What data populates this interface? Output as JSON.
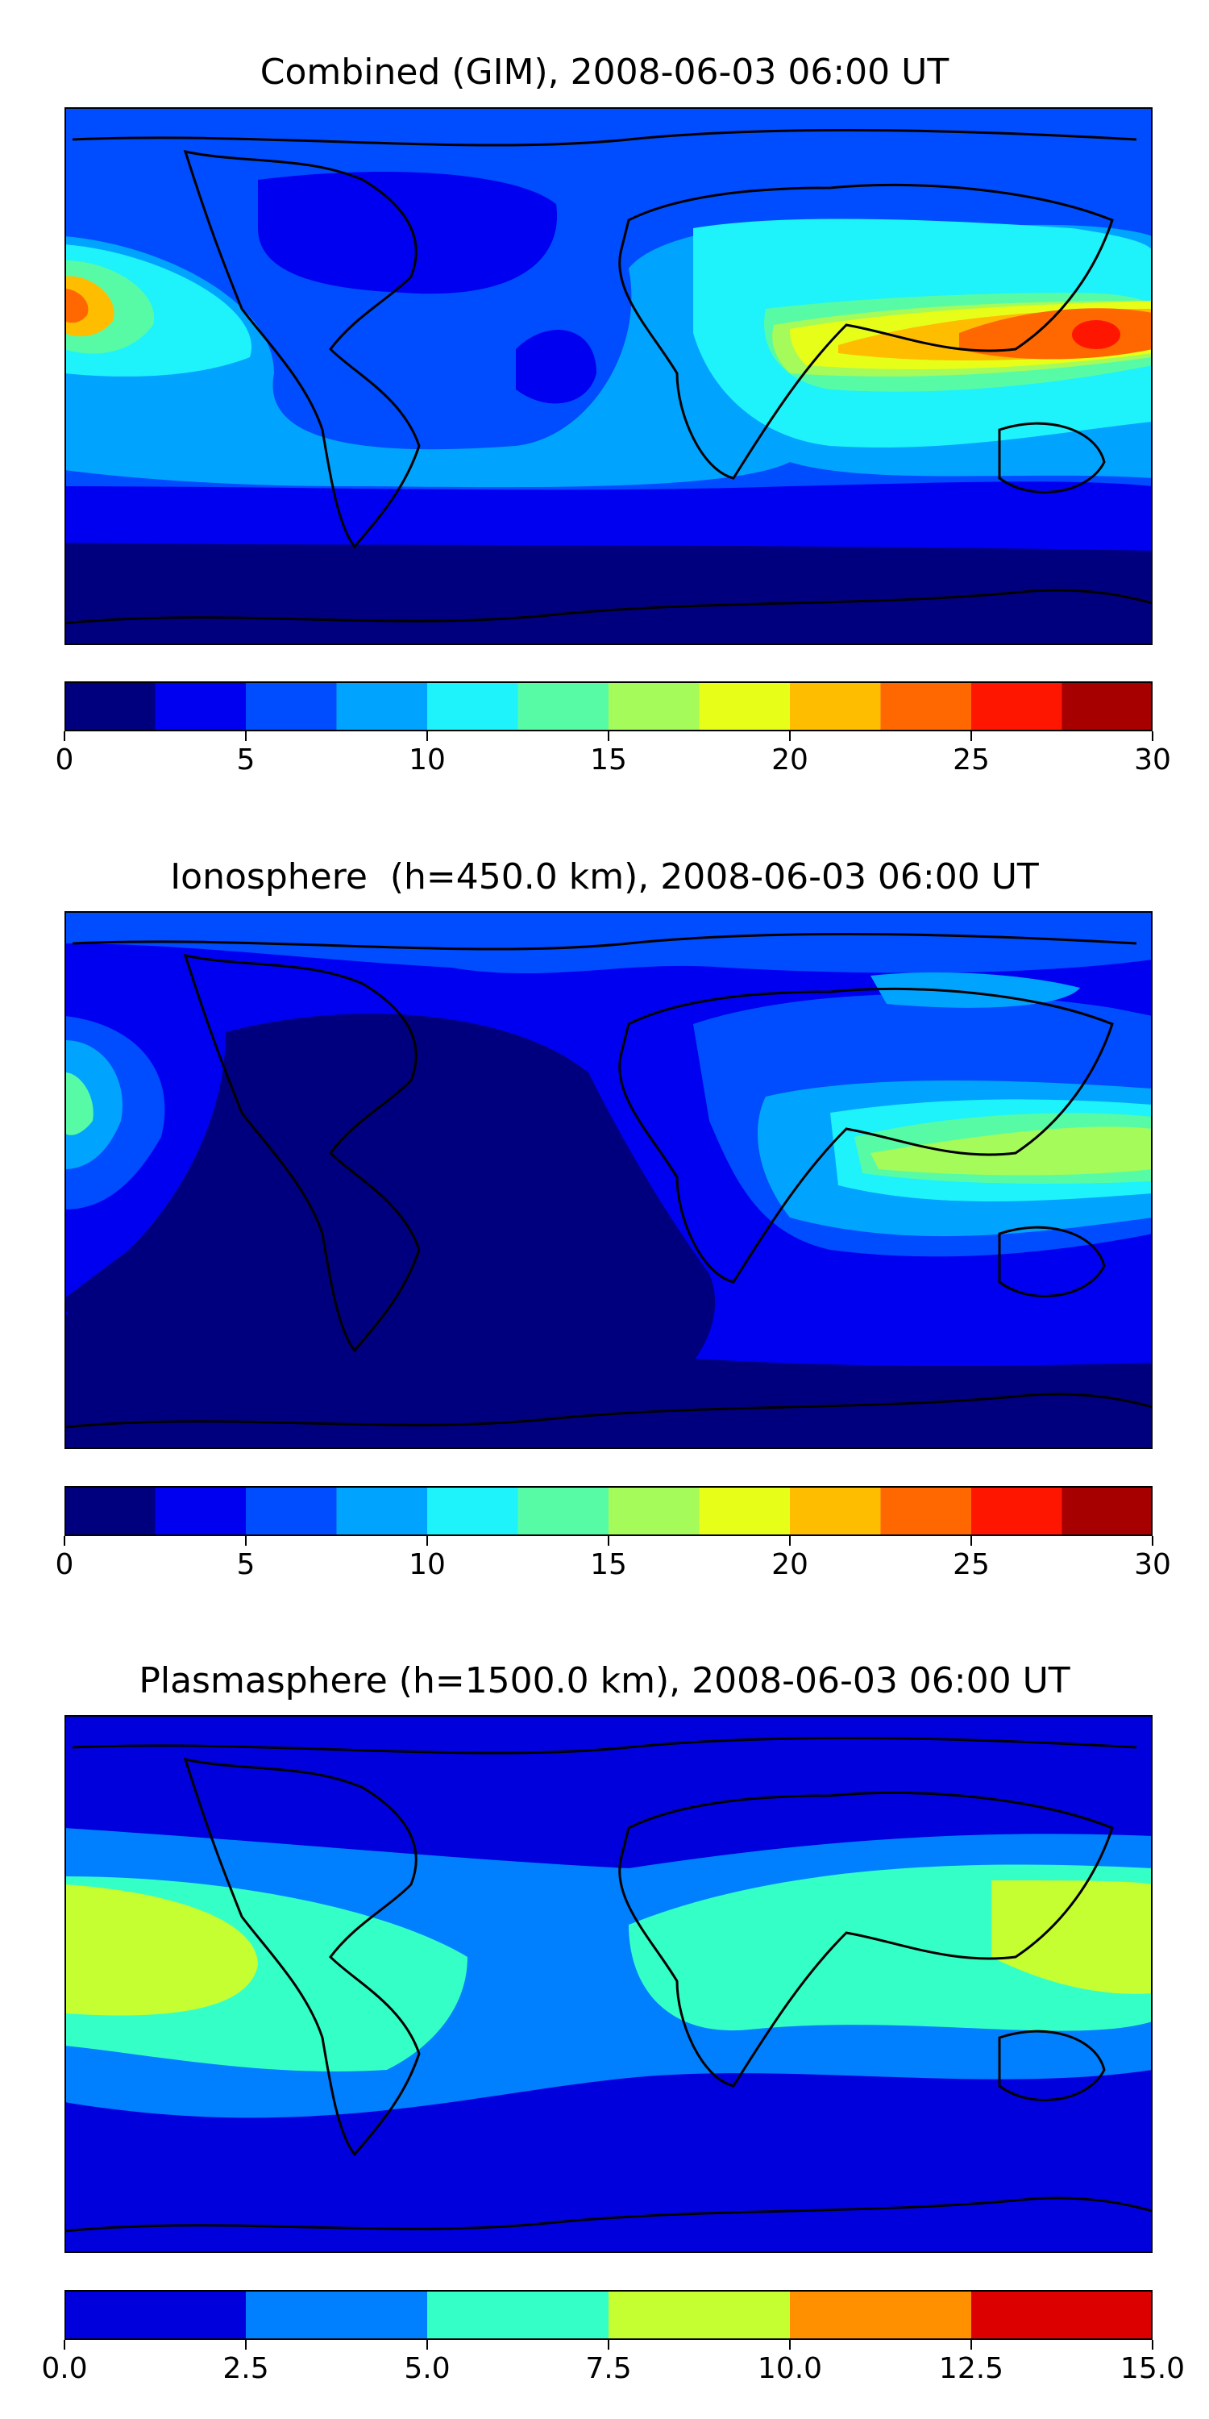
{
  "colors": {
    "jet12": [
      "#00007f",
      "#0000f1",
      "#004cff",
      "#00a4ff",
      "#1ef2fa",
      "#58fba5",
      "#a4fb5a",
      "#e7ff18",
      "#ffbd00",
      "#ff6800",
      "#ff1600",
      "#a70000"
    ],
    "jet6": [
      "#0000dd",
      "#0080ff",
      "#34ffc6",
      "#c5ff32",
      "#ff9000",
      "#dd0000"
    ]
  },
  "panels": [
    {
      "title": "Combined (GIM), 2008-06-03 06:00 UT",
      "levels": 12,
      "bins": [
        0,
        2.5,
        5,
        7.5,
        10,
        12.5,
        15,
        17.5,
        20,
        22.5,
        25,
        27.5,
        30
      ],
      "ticks": [
        "0",
        "5",
        "10",
        "15",
        "20",
        "25",
        "30"
      ],
      "tick_values": [
        0,
        5,
        10,
        15,
        20,
        25,
        30
      ],
      "range": [
        0,
        30
      ]
    },
    {
      "title": "Ionosphere  (h=450.0 km), 2008-06-03 06:00 UT",
      "levels": 12,
      "bins": [
        0,
        2.5,
        5,
        7.5,
        10,
        12.5,
        15,
        17.5,
        20,
        22.5,
        25,
        27.5,
        30
      ],
      "ticks": [
        "0",
        "5",
        "10",
        "15",
        "20",
        "25",
        "30"
      ],
      "tick_values": [
        0,
        5,
        10,
        15,
        20,
        25,
        30
      ],
      "range": [
        0,
        30
      ]
    },
    {
      "title": "Plasmasphere (h=1500.0 km), 2008-06-03 06:00 UT",
      "levels": 6,
      "bins": [
        0,
        2.5,
        5,
        7.5,
        10,
        12.5,
        15
      ],
      "ticks": [
        "0.0",
        "2.5",
        "5.0",
        "7.5",
        "10.0",
        "12.5",
        "15.0"
      ],
      "tick_values": [
        0,
        2.5,
        5,
        7.5,
        10,
        12.5,
        15
      ],
      "range": [
        0,
        15
      ]
    }
  ]
}
